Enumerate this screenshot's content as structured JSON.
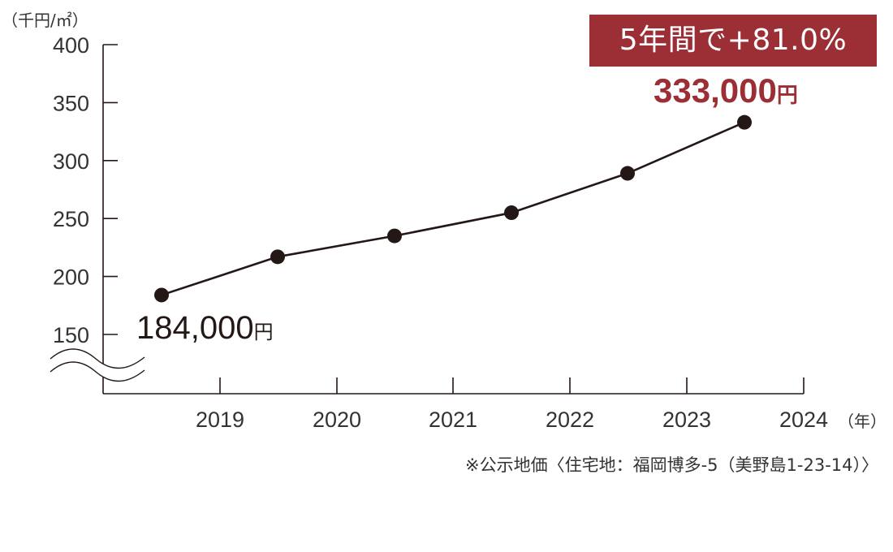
{
  "y_unit": "（千円/㎡）",
  "x_unit": "（年）",
  "chart_data": {
    "type": "line",
    "x_ticks": [
      "2019",
      "2020",
      "2021",
      "2022",
      "2023",
      "2024"
    ],
    "y_ticks": [
      "400",
      "350",
      "300",
      "250",
      "200",
      "150"
    ],
    "ylim": [
      150,
      400
    ],
    "axis_break": true,
    "points": [
      184,
      217,
      235,
      255,
      289,
      333
    ],
    "line_color": "#231815",
    "grid": false
  },
  "highlight": {
    "text": "5年間で+81.0%",
    "color": "#9b2f35"
  },
  "end_value": {
    "number": "333,000",
    "unit": "円"
  },
  "start_value": {
    "number": "184,000",
    "unit": "円"
  },
  "source_note": "※公示地価〈住宅地：福岡博多-5（美野島1-23-14）〉"
}
